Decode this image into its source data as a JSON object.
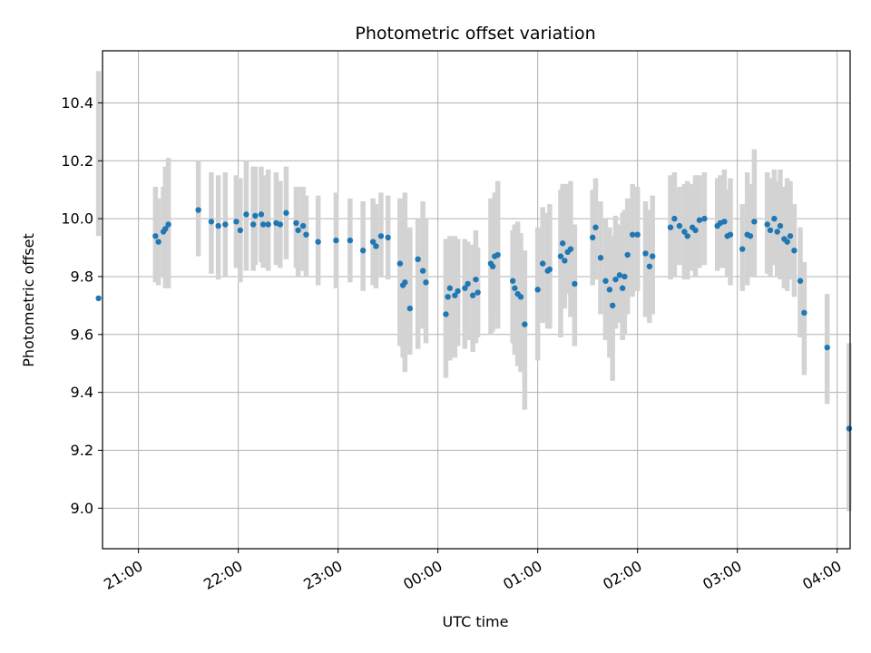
{
  "chart_data": {
    "type": "scatter",
    "title": "Photometric offset variation",
    "xlabel": "UTC time",
    "ylabel": "Photometric offset",
    "x_unit": "hours (UTC clock time)",
    "x_ticks": [
      {
        "value": 21,
        "label": "21:00"
      },
      {
        "value": 22,
        "label": "22:00"
      },
      {
        "value": 23,
        "label": "23:00"
      },
      {
        "value": 24,
        "label": "00:00"
      },
      {
        "value": 25,
        "label": "01:00"
      },
      {
        "value": 26,
        "label": "02:00"
      },
      {
        "value": 27,
        "label": "03:00"
      },
      {
        "value": 28,
        "label": "04:00"
      }
    ],
    "y_ticks": [
      "9.0",
      "9.2",
      "9.4",
      "9.6",
      "9.8",
      "10.0",
      "10.2",
      "10.4"
    ],
    "xlim": [
      20.64,
      28.13
    ],
    "ylim": [
      8.86,
      10.58
    ],
    "grid": true,
    "point_color": "#1f77b4",
    "errorbar_color": "#d3d3d3",
    "points": [
      [
        20.6,
        9.725,
        9.94,
        10.51
      ],
      [
        21.17,
        9.94,
        9.78,
        10.11
      ],
      [
        21.2,
        9.92,
        9.77,
        10.07
      ],
      [
        21.25,
        9.955,
        9.8,
        10.11
      ],
      [
        21.27,
        9.965,
        9.76,
        10.18
      ],
      [
        21.3,
        9.98,
        9.76,
        10.21
      ],
      [
        21.6,
        10.03,
        9.87,
        10.2
      ],
      [
        21.73,
        9.99,
        9.81,
        10.16
      ],
      [
        21.8,
        9.975,
        9.79,
        10.15
      ],
      [
        21.87,
        9.98,
        9.8,
        10.16
      ],
      [
        21.98,
        9.99,
        9.83,
        10.15
      ],
      [
        22.02,
        9.96,
        9.78,
        10.14
      ],
      [
        22.08,
        10.015,
        9.82,
        10.2
      ],
      [
        22.15,
        9.98,
        9.82,
        10.18
      ],
      [
        22.17,
        10.01,
        9.84,
        10.18
      ],
      [
        22.23,
        10.015,
        9.85,
        10.18
      ],
      [
        22.25,
        9.98,
        9.83,
        10.15
      ],
      [
        22.3,
        9.98,
        9.82,
        10.17
      ],
      [
        22.38,
        9.985,
        9.84,
        10.16
      ],
      [
        22.42,
        9.98,
        9.83,
        10.13
      ],
      [
        22.48,
        10.02,
        9.86,
        10.18
      ],
      [
        22.58,
        9.985,
        9.83,
        10.11
      ],
      [
        22.6,
        9.96,
        9.8,
        10.11
      ],
      [
        22.65,
        9.975,
        9.82,
        10.11
      ],
      [
        22.68,
        9.945,
        9.8,
        10.08
      ],
      [
        22.8,
        9.92,
        9.77,
        10.08
      ],
      [
        22.98,
        9.925,
        9.76,
        10.09
      ],
      [
        23.12,
        9.925,
        9.78,
        10.07
      ],
      [
        23.25,
        9.89,
        9.75,
        10.06
      ],
      [
        23.35,
        9.92,
        9.77,
        10.07
      ],
      [
        23.38,
        9.905,
        9.76,
        10.05
      ],
      [
        23.43,
        9.94,
        9.8,
        10.09
      ],
      [
        23.5,
        9.935,
        9.79,
        10.08
      ],
      [
        23.62,
        9.845,
        9.56,
        10.07
      ],
      [
        23.65,
        9.77,
        9.52,
        10.02
      ],
      [
        23.67,
        9.78,
        9.47,
        10.09
      ],
      [
        23.72,
        9.69,
        9.53,
        9.97
      ],
      [
        23.8,
        9.86,
        9.55,
        10.0
      ],
      [
        23.85,
        9.82,
        9.62,
        10.06
      ],
      [
        23.88,
        9.78,
        9.57,
        10.0
      ],
      [
        24.08,
        9.67,
        9.45,
        9.93
      ],
      [
        24.1,
        9.73,
        9.55,
        9.92
      ],
      [
        24.12,
        9.76,
        9.51,
        9.94
      ],
      [
        24.17,
        9.735,
        9.52,
        9.94
      ],
      [
        24.2,
        9.75,
        9.56,
        9.93
      ],
      [
        24.27,
        9.76,
        9.55,
        9.93
      ],
      [
        24.3,
        9.775,
        9.58,
        9.92
      ],
      [
        24.35,
        9.735,
        9.54,
        9.91
      ],
      [
        24.38,
        9.79,
        9.57,
        9.96
      ],
      [
        24.4,
        9.745,
        9.59,
        9.9
      ],
      [
        24.53,
        9.845,
        9.6,
        10.07
      ],
      [
        24.55,
        9.835,
        9.61,
        10.06
      ],
      [
        24.57,
        9.87,
        9.67,
        10.09
      ],
      [
        24.6,
        9.875,
        9.62,
        10.13
      ],
      [
        24.75,
        9.785,
        9.57,
        9.96
      ],
      [
        24.77,
        9.76,
        9.53,
        9.98
      ],
      [
        24.8,
        9.74,
        9.49,
        9.99
      ],
      [
        24.83,
        9.73,
        9.47,
        9.95
      ],
      [
        24.87,
        9.635,
        9.34,
        9.89
      ],
      [
        25.0,
        9.755,
        9.51,
        9.97
      ],
      [
        25.05,
        9.845,
        9.64,
        10.04
      ],
      [
        25.1,
        9.82,
        9.62,
        10.02
      ],
      [
        25.12,
        9.825,
        9.62,
        10.05
      ],
      [
        25.23,
        9.87,
        9.59,
        10.1
      ],
      [
        25.25,
        9.915,
        9.7,
        10.12
      ],
      [
        25.27,
        9.855,
        9.69,
        10.12
      ],
      [
        25.3,
        9.885,
        9.74,
        10.12
      ],
      [
        25.33,
        9.895,
        9.66,
        10.13
      ],
      [
        25.37,
        9.775,
        9.56,
        9.98
      ],
      [
        25.55,
        9.935,
        9.77,
        10.1
      ],
      [
        25.58,
        9.97,
        9.79,
        10.14
      ],
      [
        25.63,
        9.865,
        9.67,
        10.06
      ],
      [
        25.68,
        9.785,
        9.58,
        10.0
      ],
      [
        25.72,
        9.755,
        9.52,
        9.97
      ],
      [
        25.75,
        9.7,
        9.44,
        9.94
      ],
      [
        25.78,
        9.79,
        9.62,
        10.01
      ],
      [
        25.82,
        9.805,
        9.64,
        9.98
      ],
      [
        25.85,
        9.76,
        9.58,
        10.02
      ],
      [
        25.87,
        9.8,
        9.6,
        10.03
      ],
      [
        25.9,
        9.875,
        9.67,
        10.07
      ],
      [
        25.95,
        9.945,
        9.73,
        10.12
      ],
      [
        26.0,
        9.945,
        9.75,
        10.11
      ],
      [
        26.08,
        9.88,
        9.66,
        10.06
      ],
      [
        26.12,
        9.835,
        9.64,
        10.03
      ],
      [
        26.15,
        9.87,
        9.67,
        10.08
      ],
      [
        26.33,
        9.97,
        9.79,
        10.15
      ],
      [
        26.37,
        10.0,
        9.8,
        10.16
      ],
      [
        26.42,
        9.975,
        9.84,
        10.11
      ],
      [
        26.47,
        9.955,
        9.79,
        10.12
      ],
      [
        26.5,
        9.94,
        9.79,
        10.13
      ],
      [
        26.55,
        9.97,
        9.82,
        10.12
      ],
      [
        26.58,
        9.96,
        9.8,
        10.15
      ],
      [
        26.62,
        9.995,
        9.83,
        10.15
      ],
      [
        26.67,
        10.0,
        9.84,
        10.16
      ],
      [
        26.8,
        9.975,
        9.82,
        10.14
      ],
      [
        26.83,
        9.985,
        9.83,
        10.15
      ],
      [
        26.87,
        9.99,
        9.83,
        10.17
      ],
      [
        26.9,
        9.94,
        9.8,
        10.1
      ],
      [
        26.93,
        9.945,
        9.77,
        10.14
      ],
      [
        27.05,
        9.895,
        9.75,
        10.05
      ],
      [
        27.1,
        9.945,
        9.77,
        10.16
      ],
      [
        27.13,
        9.94,
        9.8,
        10.12
      ],
      [
        27.17,
        9.99,
        9.8,
        10.24
      ],
      [
        27.3,
        9.98,
        9.81,
        10.16
      ],
      [
        27.33,
        9.96,
        9.8,
        10.14
      ],
      [
        27.37,
        10.0,
        9.84,
        10.17
      ],
      [
        27.4,
        9.955,
        9.8,
        10.13
      ],
      [
        27.43,
        9.975,
        9.79,
        10.17
      ],
      [
        27.47,
        9.93,
        9.76,
        10.11
      ],
      [
        27.5,
        9.92,
        9.75,
        10.14
      ],
      [
        27.53,
        9.94,
        9.79,
        10.13
      ],
      [
        27.57,
        9.89,
        9.73,
        10.05
      ],
      [
        27.63,
        9.785,
        9.59,
        9.97
      ],
      [
        27.67,
        9.675,
        9.46,
        9.85
      ],
      [
        27.9,
        9.555,
        9.36,
        9.74
      ],
      [
        28.12,
        9.275,
        8.99,
        9.57
      ]
    ]
  }
}
